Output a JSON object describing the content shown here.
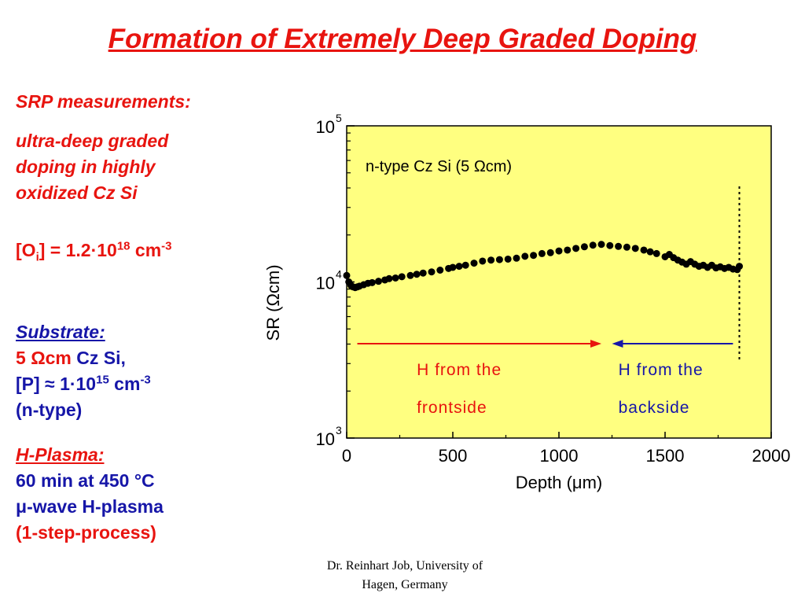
{
  "slide": {
    "title": "Formation of Extremely Deep Graded Doping",
    "srp_heading": "SRP measurements:",
    "srp_desc": [
      "ultra-deep graded",
      "doping in highly",
      "oxidized Cz Si"
    ],
    "oi": {
      "open": "[O",
      "sub": "i",
      "mid": "] = 1.2·10",
      "exp": "18",
      "unit": " cm",
      "unit_exp": "-3"
    },
    "substrate": {
      "heading": "Substrate:",
      "resist_val": "5 ",
      "resist_unit": "Ωcm",
      "resist_rest": " Cz Si,",
      "p_line": {
        "pre": "[P] ≈ 1·10",
        "exp": "15",
        "unit": " cm",
        "unit_exp": "-3"
      },
      "type": "(n-type)"
    },
    "plasma": {
      "heading": "H-Plasma:",
      "lines": [
        "60 min at 450 °C",
        "μ-wave H-plasma",
        "(1-step-process)"
      ]
    },
    "footer": [
      "Dr. Reinhart Job, University of",
      "Hagen, Germany"
    ]
  },
  "chart_data": {
    "type": "scatter",
    "xlabel": "Depth (μm)",
    "ylabel": "SR (Ωcm)",
    "xlim": [
      0,
      2000
    ],
    "ylim": [
      1000,
      100000
    ],
    "yscale": "log",
    "xticks": [
      0,
      500,
      1000,
      1500,
      2000
    ],
    "yticks": [
      {
        "value": 1000,
        "base": "10",
        "exp": "3"
      },
      {
        "value": 10000,
        "base": "10",
        "exp": "4"
      },
      {
        "value": 100000,
        "base": "10",
        "exp": "5"
      }
    ],
    "annotation": "n-type Cz Si (5 Ωcm)",
    "plot_background": "#ffff80",
    "grid": false,
    "legend": "none",
    "boundary_marker_x": 1850,
    "arrows": [
      {
        "direction": "right",
        "x_from": 50,
        "x_to": 1200,
        "color": "#e8140f",
        "label_lines": [
          "H from the",
          "frontside"
        ]
      },
      {
        "direction": "left",
        "x_from": 1820,
        "x_to": 1250,
        "color": "#1616a8",
        "label_lines": [
          "H from the",
          "backside"
        ]
      }
    ],
    "series": [
      {
        "x": [
          0,
          10,
          20,
          30,
          40,
          50,
          60,
          80,
          100,
          120,
          150,
          180,
          200,
          230,
          260,
          300,
          330,
          360,
          400,
          440,
          480,
          500,
          530,
          560,
          600,
          640,
          680,
          720,
          760,
          800,
          840,
          880,
          920,
          960,
          1000,
          1040,
          1080,
          1120,
          1160,
          1200,
          1240,
          1280,
          1320,
          1360,
          1400,
          1430,
          1460,
          1500,
          1520,
          1540,
          1560,
          1580,
          1600,
          1620,
          1640,
          1660,
          1680,
          1700,
          1720,
          1740,
          1760,
          1780,
          1800,
          1820,
          1840,
          1850
        ],
        "y": [
          11000,
          10000,
          9500,
          9300,
          9200,
          9300,
          9400,
          9600,
          9800,
          9900,
          10100,
          10300,
          10500,
          10600,
          10800,
          11000,
          11200,
          11400,
          11600,
          11900,
          12200,
          12400,
          12600,
          12800,
          13200,
          13600,
          13800,
          13900,
          14000,
          14200,
          14600,
          14800,
          15200,
          15400,
          15800,
          16000,
          16400,
          16800,
          17200,
          17400,
          17100,
          16900,
          16700,
          16400,
          16000,
          15600,
          15200,
          14500,
          15000,
          14300,
          13800,
          13400,
          13000,
          13500,
          13000,
          12600,
          12800,
          12400,
          12800,
          12300,
          12500,
          12200,
          12400,
          12100,
          12000,
          12600
        ]
      }
    ]
  }
}
